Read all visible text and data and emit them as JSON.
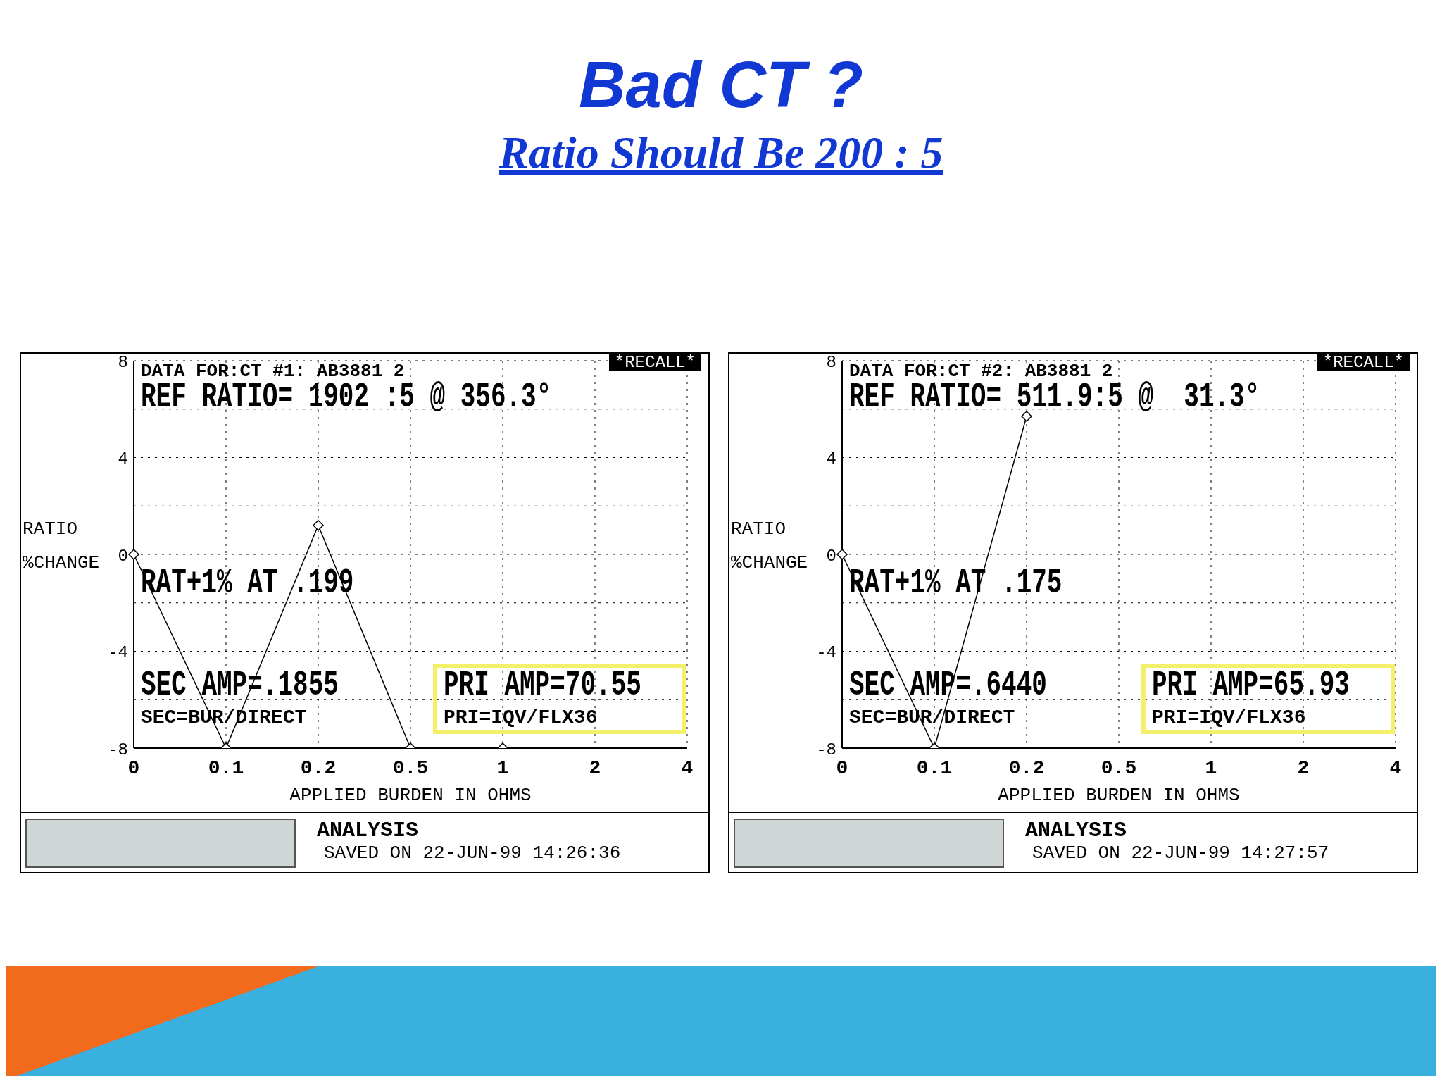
{
  "chart_data": [
    {
      "type": "line",
      "title": "Bad CT ?",
      "subtitle": "Ratio Should Be 200 : 5",
      "xlabel": "APPLIED BURDEN IN OHMS",
      "ylabel": "RATIO %CHANGE",
      "categories": [
        "0",
        "0.1",
        "0.2",
        "0.5",
        "1",
        "2",
        "4"
      ],
      "series": [
        {
          "color": "#000000",
          "values": [
            0,
            -8,
            1.2,
            -8,
            -8,
            null,
            null
          ]
        }
      ],
      "ylim": [
        -8,
        8
      ],
      "yticks": [
        {
          "value": -8,
          "label": "-8"
        },
        {
          "value": -6,
          "label": null
        },
        {
          "value": -4,
          "label": "-4"
        },
        {
          "value": -2,
          "label": null
        },
        0,
        {
          "value": 2,
          "label": null
        },
        4,
        {
          "value": 6,
          "label": null
        },
        8
      ],
      "grid": true,
      "legend": false,
      "marker": "diamond",
      "line_style": "solid",
      "annotations": [
        "DATA FOR:CT #1: AB3881 2",
        "REF RATIO= 1902 :5 @ 356.3°",
        "*RECALL*",
        "RAT+1% AT .199",
        "SEC AMP=.1855",
        "SEC=BUR/DIRECT",
        "PRI AMP=70.55",
        "PRI=IQV/FLX36",
        "ANALYSIS",
        "SAVED ON 22-JUN-99 14:26:36"
      ]
    },
    {
      "type": "line",
      "xlabel": "APPLIED BURDEN IN OHMS",
      "ylabel": "RATIO %CHANGE",
      "categories": [
        "0",
        "0.1",
        "0.2",
        "0.5",
        "1",
        "2",
        "4"
      ],
      "series": [
        {
          "color": "#000000",
          "values": [
            0,
            -8,
            5.7,
            null,
            null,
            null,
            null
          ]
        }
      ],
      "ylim": [
        -8,
        8
      ],
      "yticks": [
        {
          "value": -8,
          "label": "-8"
        },
        {
          "value": -6,
          "label": null
        },
        {
          "value": -4,
          "label": "-4"
        },
        {
          "value": -2,
          "label": null
        },
        0,
        {
          "value": 2,
          "label": null
        },
        4,
        {
          "value": 6,
          "label": null
        },
        8
      ],
      "grid": true,
      "legend": false,
      "marker": "diamond",
      "line_style": "solid",
      "annotations": [
        "DATA FOR:CT #2: AB3881 2",
        "REF RATIO= 511.9:5 @  31.3°",
        "*RECALL*",
        "RAT+1% AT .175",
        "SEC AMP=.6440",
        "SEC=BUR/DIRECT",
        "PRI AMP=65.93",
        "PRI=IQV/FLX36",
        "ANALYSIS",
        "SAVED ON 22-JUN-99 14:27:57"
      ]
    }
  ]
}
